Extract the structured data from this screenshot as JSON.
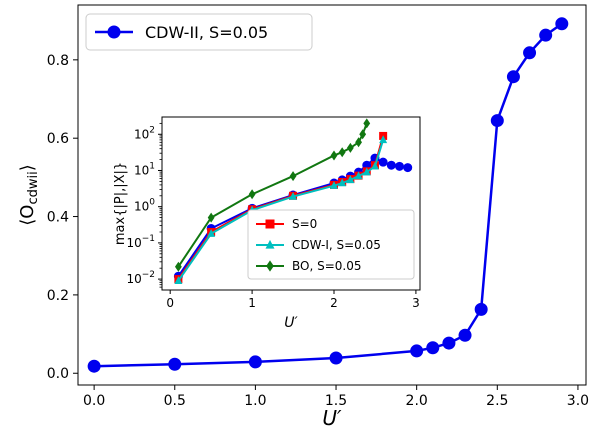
{
  "chart_data": [
    {
      "type": "line",
      "xlabel": "U′",
      "ylabel": "⟨O",
      "ylabel_sub": "cdwii",
      "ylabel_close": "⟩",
      "xlim": [
        -0.1,
        3.05
      ],
      "ylim": [
        -0.03,
        0.94
      ],
      "xticks": [
        "0.0",
        "0.5",
        "1.0",
        "1.5",
        "2.0",
        "2.5",
        "3.0"
      ],
      "xtick_values": [
        0,
        0.5,
        1.0,
        1.5,
        2.0,
        2.5,
        3.0
      ],
      "yticks": [
        "0.0",
        "0.2",
        "0.4",
        "0.6",
        "0.8"
      ],
      "ytick_values": [
        0,
        0.2,
        0.4,
        0.6,
        0.8
      ],
      "legend_position": "upper-left",
      "series": [
        {
          "name": "CDW-II, S=0.05",
          "color": "#0000ee",
          "marker": "circle",
          "x": [
            0.0,
            0.5,
            1.0,
            1.5,
            2.0,
            2.1,
            2.2,
            2.3,
            2.4,
            2.5,
            2.6,
            2.7,
            2.8,
            2.9
          ],
          "y": [
            0.018,
            0.023,
            0.029,
            0.039,
            0.057,
            0.065,
            0.077,
            0.097,
            0.163,
            0.645,
            0.757,
            0.818,
            0.863,
            0.892
          ]
        }
      ]
    },
    {
      "type": "line",
      "xlabel": "U′",
      "ylabel": "max{|P|,|X|}",
      "yscale": "log",
      "xlim": [
        -0.1,
        3.05
      ],
      "ylim": [
        0.005,
        300
      ],
      "xticks": [
        "0",
        "1",
        "2",
        "3"
      ],
      "xtick_values": [
        0,
        1,
        2,
        3
      ],
      "yticks": [
        {
          "base": "10",
          "exp": "2",
          "value": 100
        },
        {
          "base": "10",
          "exp": "1",
          "value": 10
        },
        {
          "base": "10",
          "exp": "0",
          "value": 1
        },
        {
          "base": "10",
          "exp": "−1",
          "value": 0.1
        },
        {
          "base": "10",
          "exp": "−2",
          "value": 0.01
        }
      ],
      "legend_position": "lower-right",
      "series": [
        {
          "name": "",
          "color": "#0000ee",
          "marker": "circle",
          "x": [
            0.1,
            0.5,
            1.0,
            1.5,
            2.0,
            2.1,
            2.2,
            2.3,
            2.4,
            2.5,
            2.6,
            2.7,
            2.8,
            2.9
          ],
          "y": [
            0.012,
            0.25,
            0.9,
            2.1,
            4.5,
            5.5,
            7.0,
            9.0,
            14.0,
            22.0,
            17.0,
            14.0,
            13.0,
            12.0
          ]
        },
        {
          "name": "S=0",
          "color": "#ff0000",
          "marker": "square",
          "x": [
            0.1,
            0.5,
            1.0,
            1.5,
            2.0,
            2.1,
            2.2,
            2.3,
            2.4,
            2.5,
            2.6
          ],
          "y": [
            0.01,
            0.2,
            0.85,
            2.0,
            4.0,
            4.8,
            5.8,
            7.2,
            9.5,
            14.0,
            90.0
          ]
        },
        {
          "name": "CDW-I, S=0.05",
          "color": "#00bfbf",
          "marker": "triangle",
          "x": [
            0.1,
            0.5,
            1.0,
            1.5,
            2.0,
            2.1,
            2.2,
            2.3,
            2.4,
            2.5,
            2.6
          ],
          "y": [
            0.009,
            0.18,
            0.8,
            1.9,
            3.8,
            4.5,
            5.5,
            7.0,
            9.0,
            13.0,
            70.0
          ]
        },
        {
          "name": "BO, S=0.05",
          "color": "#117711",
          "marker": "diamond",
          "x": [
            0.1,
            0.5,
            1.0,
            1.5,
            2.0,
            2.1,
            2.2,
            2.3,
            2.35,
            2.4
          ],
          "y": [
            0.022,
            0.5,
            2.2,
            7.0,
            26.0,
            32.0,
            42.0,
            60.0,
            100.0,
            200.0
          ]
        }
      ]
    }
  ]
}
